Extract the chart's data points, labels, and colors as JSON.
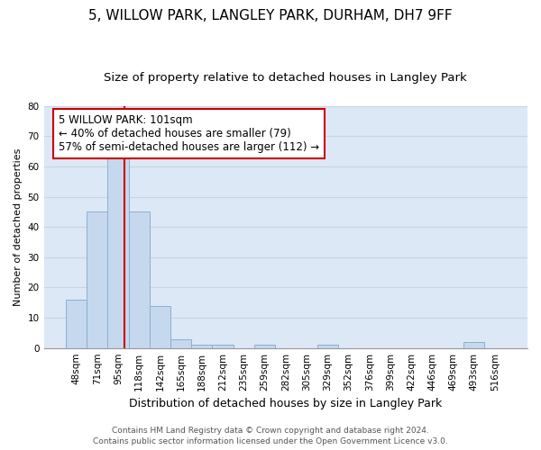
{
  "title": "5, WILLOW PARK, LANGLEY PARK, DURHAM, DH7 9FF",
  "subtitle": "Size of property relative to detached houses in Langley Park",
  "xlabel": "Distribution of detached houses by size in Langley Park",
  "ylabel": "Number of detached properties",
  "categories": [
    "48sqm",
    "71sqm",
    "95sqm",
    "118sqm",
    "142sqm",
    "165sqm",
    "188sqm",
    "212sqm",
    "235sqm",
    "259sqm",
    "282sqm",
    "305sqm",
    "329sqm",
    "352sqm",
    "376sqm",
    "399sqm",
    "422sqm",
    "446sqm",
    "469sqm",
    "493sqm",
    "516sqm"
  ],
  "values": [
    16,
    45,
    68,
    45,
    14,
    3,
    1,
    1,
    0,
    1,
    0,
    0,
    1,
    0,
    0,
    0,
    0,
    0,
    0,
    2,
    0
  ],
  "bar_color": "#c5d8ee",
  "bar_edge_color": "#8ab0d0",
  "subject_line_color": "#cc0000",
  "annotation_line1": "5 WILLOW PARK: 101sqm",
  "annotation_line2": "← 40% of detached houses are smaller (79)",
  "annotation_line3": "57% of semi-detached houses are larger (112) →",
  "annotation_box_color": "#ffffff",
  "annotation_box_edge_color": "#cc0000",
  "ylim": [
    0,
    80
  ],
  "yticks": [
    0,
    10,
    20,
    30,
    40,
    50,
    60,
    70,
    80
  ],
  "grid_color": "#c8d4e4",
  "background_color": "#dce8f5",
  "footer_line1": "Contains HM Land Registry data © Crown copyright and database right 2024.",
  "footer_line2": "Contains public sector information licensed under the Open Government Licence v3.0.",
  "title_fontsize": 11,
  "subtitle_fontsize": 9.5,
  "xlabel_fontsize": 9,
  "ylabel_fontsize": 8,
  "tick_fontsize": 7.5,
  "annotation_fontsize": 8.5,
  "footer_fontsize": 6.5,
  "subject_sqm": 101,
  "bin_edges": [
    36,
    59,
    83,
    106,
    130,
    153,
    177,
    200,
    224,
    247,
    271,
    294,
    318,
    341,
    365,
    388,
    412,
    435,
    459,
    482,
    506,
    529
  ]
}
